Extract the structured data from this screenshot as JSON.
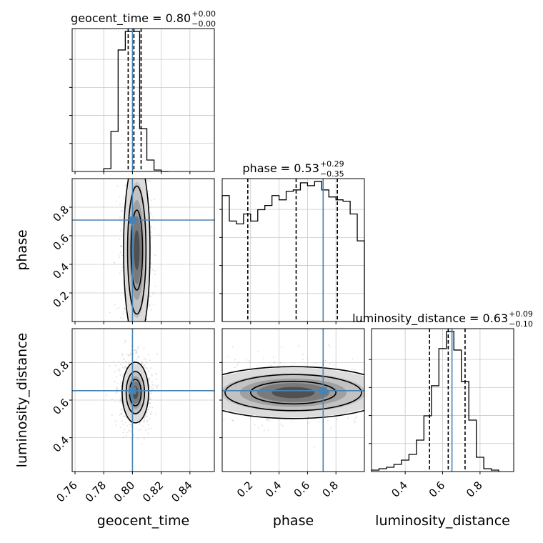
{
  "chart_data": {
    "type": "corner",
    "parameters": [
      "geocent_time",
      "phase",
      "luminosity_distance"
    ],
    "truths": {
      "geocent_time": 0.8,
      "phase": 0.71,
      "luminosity_distance": 0.65
    },
    "colors": {
      "truth": "#4682b4",
      "hist": "#000000",
      "grid": "#c8c8c8"
    },
    "diagonal": [
      {
        "param": "geocent_time",
        "title_main": "geocent_time = 0.80",
        "title_plus": "+0.00",
        "title_minus": "−0.00",
        "hist_edges": [
          0.78,
          0.785,
          0.79,
          0.795,
          0.8,
          0.805,
          0.81,
          0.815,
          0.82,
          0.825
        ],
        "hist_counts": [
          0.02,
          0.28,
          0.85,
          0.98,
          0.98,
          0.3,
          0.08,
          0.01,
          0.0
        ],
        "quantiles": [
          0.797,
          0.801,
          0.806
        ],
        "xlim": [
          0.758,
          0.857
        ]
      },
      {
        "param": "phase",
        "title_main": "phase = 0.53",
        "title_plus": "+0.29",
        "title_minus": "−0.35",
        "hist_edges": [
          0.0,
          0.05,
          0.1,
          0.15,
          0.2,
          0.25,
          0.3,
          0.35,
          0.4,
          0.45,
          0.5,
          0.55,
          0.6,
          0.65,
          0.7,
          0.75,
          0.8,
          0.85,
          0.9,
          0.95,
          1.0
        ],
        "hist_counts": [
          0.89,
          0.71,
          0.69,
          0.76,
          0.71,
          0.79,
          0.82,
          0.89,
          0.86,
          0.92,
          0.93,
          0.98,
          0.96,
          0.99,
          0.93,
          0.88,
          0.86,
          0.85,
          0.76,
          0.57
        ],
        "quantiles": [
          0.18,
          0.52,
          0.81
        ],
        "xlim": [
          0.0,
          1.0
        ]
      },
      {
        "param": "luminosity_distance",
        "title_main": "luminosity_distance = 0.63",
        "title_plus": "+0.09",
        "title_minus": "−0.10",
        "hist_edges": [
          0.22,
          0.26,
          0.3,
          0.34,
          0.38,
          0.42,
          0.46,
          0.5,
          0.54,
          0.58,
          0.62,
          0.66,
          0.7,
          0.74,
          0.78,
          0.82,
          0.86,
          0.9
        ],
        "hist_counts": [
          0.01,
          0.02,
          0.03,
          0.05,
          0.08,
          0.12,
          0.22,
          0.39,
          0.6,
          0.86,
          0.98,
          0.85,
          0.63,
          0.36,
          0.1,
          0.02,
          0.01
        ],
        "quantiles": [
          0.53,
          0.63,
          0.72
        ],
        "xlim": [
          0.22,
          0.98
        ]
      }
    ],
    "lower_panels": [
      {
        "x": "geocent_time",
        "y": "phase",
        "center": [
          0.803,
          0.5
        ],
        "spread": [
          0.004,
          0.28
        ],
        "xlim": [
          0.758,
          0.857
        ],
        "ylim": [
          0.0,
          1.0
        ]
      },
      {
        "x": "geocent_time",
        "y": "luminosity_distance",
        "center": [
          0.802,
          0.64
        ],
        "spread": [
          0.004,
          0.07
        ],
        "xlim": [
          0.758,
          0.857
        ],
        "ylim": [
          0.22,
          0.98
        ]
      },
      {
        "x": "phase",
        "y": "luminosity_distance",
        "center": [
          0.5,
          0.64
        ],
        "spread": [
          0.3,
          0.06
        ],
        "xlim": [
          0.0,
          1.0
        ],
        "ylim": [
          0.22,
          0.98
        ]
      }
    ],
    "ticks": {
      "geocent_time": {
        "values": [
          0.76,
          0.78,
          0.8,
          0.82,
          0.84
        ],
        "labels": [
          "0.76",
          "0.78",
          "0.80",
          "0.82",
          "0.84"
        ]
      },
      "phase": {
        "values": [
          0.2,
          0.4,
          0.6,
          0.8
        ],
        "labels": [
          "0.2",
          "0.4",
          "0.6",
          "0.8"
        ]
      },
      "luminosity_distance": {
        "values": [
          0.4,
          0.6,
          0.8
        ],
        "labels": [
          "0.4",
          "0.6",
          "0.8"
        ]
      }
    },
    "xlabels": [
      "geocent_time",
      "phase",
      "luminosity_distance"
    ],
    "ylabels": [
      "phase",
      "luminosity_distance"
    ]
  }
}
